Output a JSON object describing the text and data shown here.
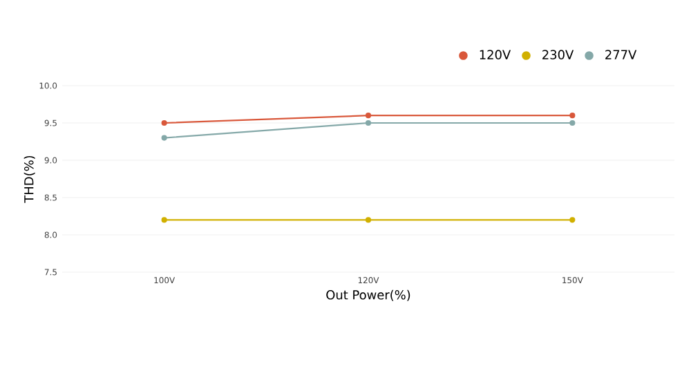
{
  "chart_data": {
    "type": "line",
    "xlabel": "Out Power(%)",
    "ylabel": "THD(%)",
    "categories": [
      "100V",
      "120V",
      "150V"
    ],
    "series": [
      {
        "name": "120V",
        "color": "#d9583b",
        "values": [
          9.5,
          9.6,
          9.6
        ]
      },
      {
        "name": "230V",
        "color": "#d1b000",
        "values": [
          8.2,
          8.2,
          8.2
        ]
      },
      {
        "name": "277V",
        "color": "#84a8a8",
        "values": [
          9.3,
          9.5,
          9.5
        ]
      }
    ],
    "ylim": [
      7.5,
      10.0
    ],
    "yticks": [
      {
        "value": 7.5,
        "label": "7.5"
      },
      {
        "value": 8.0,
        "label": "8.0"
      },
      {
        "value": 8.5,
        "label": "8.5"
      },
      {
        "value": 9.0,
        "label": "9.0"
      },
      {
        "value": 9.5,
        "label": "9.5"
      },
      {
        "value": 10.0,
        "label": "10.0"
      }
    ],
    "grid": "y",
    "legend": "top right",
    "marker": "circle",
    "line_style": "solid"
  }
}
